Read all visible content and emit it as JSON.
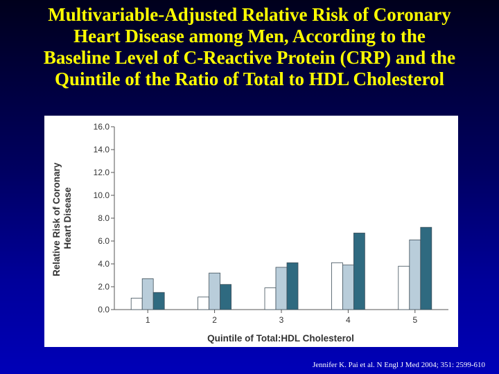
{
  "slide": {
    "title_lines": [
      "Multivariable-Adjusted Relative Risk of Coronary",
      "Heart Disease among Men,  According to the",
      "Baseline Level of C-Reactive Protein (CRP) and the",
      "Quintile of the Ratio of Total to HDL Cholesterol"
    ],
    "citation": "Jennifer K. Pai et al. N Engl J Med 2004; 351: 2599-610"
  },
  "chart_data": {
    "type": "bar",
    "categories": [
      "1",
      "2",
      "3",
      "4",
      "5"
    ],
    "series": [
      {
        "values": [
          1.0,
          1.1,
          1.9,
          4.1,
          3.8
        ],
        "color": "#ffffff"
      },
      {
        "values": [
          2.7,
          3.2,
          3.7,
          3.9,
          6.1
        ],
        "color": "#b9cdda"
      },
      {
        "values": [
          1.5,
          2.2,
          4.1,
          6.7,
          7.2
        ],
        "color": "#2f6a80"
      }
    ],
    "ylabel_lines": [
      "Relative Risk of Coronary",
      "Heart Disease"
    ],
    "xlabel": "Quintile of Total:HDL Cholesterol",
    "ylim": [
      0,
      16
    ],
    "yticks": [
      "0.0",
      "2.0",
      "4.0",
      "6.0",
      "8.0",
      "10.0",
      "12.0",
      "14.0",
      "16.0"
    ],
    "grid": false,
    "legend": "none"
  }
}
